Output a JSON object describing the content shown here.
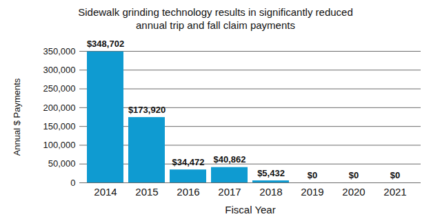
{
  "chart_data": {
    "type": "bar",
    "title": "Sidewalk grinding technology results in significantly reduced annual trip and fall claim payments",
    "x_label": "Fiscal Year",
    "y_label": "Annual $ Payments",
    "categories": [
      "2014",
      "2015",
      "2016",
      "2017",
      "2018",
      "2019",
      "2020",
      "2021"
    ],
    "values": [
      348702,
      173920,
      34472,
      40862,
      5432,
      0,
      0,
      0
    ],
    "value_labels": [
      "$348,702",
      "$173,920",
      "$34,472",
      "$40,862",
      "$5,432",
      "$0",
      "$0",
      "$0"
    ],
    "color": "#0f9bd1",
    "ylim": [
      0,
      350000
    ],
    "yticks": [
      0,
      {
        "value": 50000,
        "label": "50,000"
      },
      {
        "value": 100000,
        "label": "100,000"
      },
      {
        "value": 150000,
        "label": "150,000"
      },
      {
        "value": 200000,
        "label": "200,000"
      },
      {
        "value": 250000,
        "label": "250,000"
      },
      {
        "value": 300000,
        "label": "300,000"
      },
      {
        "value": 350000,
        "label": "350,000"
      }
    ],
    "grid": true,
    "data_labels": true
  }
}
